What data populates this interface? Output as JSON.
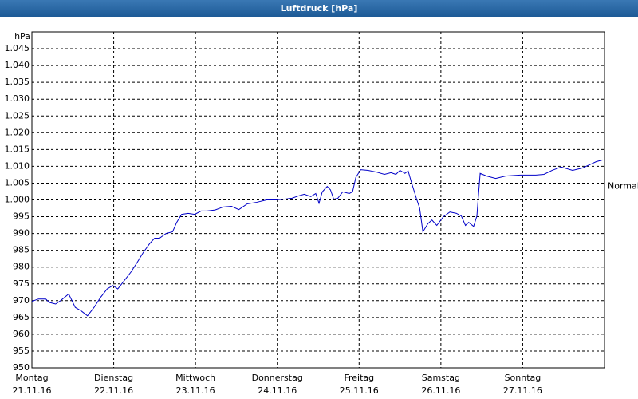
{
  "chart_data": {
    "type": "line",
    "title": "Luftdruck [hPa]",
    "y_unit": "hPa",
    "annotation": {
      "text": "Normal",
      "y": 1004
    },
    "xlim": [
      0,
      7
    ],
    "ylim": [
      950,
      1050
    ],
    "grid": true,
    "xticks": [
      {
        "value": 0,
        "label": "Montag",
        "date": "21.11.16"
      },
      {
        "value": 1,
        "label": "Dienstag",
        "date": "22.11.16"
      },
      {
        "value": 2,
        "label": "Mittwoch",
        "date": "23.11.16"
      },
      {
        "value": 3,
        "label": "Donnerstag",
        "date": "24.11.16"
      },
      {
        "value": 4,
        "label": "Freitag",
        "date": "25.11.16"
      },
      {
        "value": 5,
        "label": "Samstag",
        "date": "26.11.16"
      },
      {
        "value": 6,
        "label": "Sonntag",
        "date": "27.11.16"
      }
    ],
    "yticks": [
      950,
      955,
      960,
      965,
      970,
      975,
      980,
      985,
      990,
      995,
      {
        "value": 1000,
        "label": "1.000"
      },
      {
        "value": 1005,
        "label": "1.005"
      },
      {
        "value": 1010,
        "label": "1.010"
      },
      {
        "value": 1015,
        "label": "1.015"
      },
      {
        "value": 1020,
        "label": "1.020"
      },
      {
        "value": 1025,
        "label": "1.025"
      },
      {
        "value": 1030,
        "label": "1.030"
      },
      {
        "value": 1035,
        "label": "1.035"
      },
      {
        "value": 1040,
        "label": "1.040"
      },
      {
        "value": 1045,
        "label": "1.045"
      }
    ],
    "x": [
      0,
      0.08,
      0.17,
      0.21,
      0.29,
      0.35,
      0.45,
      0.53,
      0.6,
      0.68,
      0.76,
      0.84,
      0.92,
      0.99,
      1.05,
      1.13,
      1.21,
      1.29,
      1.36,
      1.44,
      1.5,
      1.56,
      1.64,
      1.72,
      1.77,
      1.83,
      1.91,
      1.99,
      2.07,
      2.14,
      2.24,
      2.34,
      2.44,
      2.53,
      2.63,
      2.75,
      2.87,
      2.98,
      3.08,
      3.18,
      3.26,
      3.33,
      3.41,
      3.47,
      3.51,
      3.55,
      3.61,
      3.65,
      3.69,
      3.74,
      3.8,
      3.88,
      3.92,
      3.96,
      4.02,
      4.11,
      4.21,
      4.31,
      4.39,
      4.45,
      4.5,
      4.56,
      4.6,
      4.64,
      4.7,
      4.74,
      4.78,
      4.84,
      4.89,
      4.95,
      5.03,
      5.11,
      5.19,
      5.25,
      5.3,
      5.34,
      5.4,
      5.44,
      5.48,
      5.56,
      5.67,
      5.79,
      5.97,
      6.16,
      6.26,
      6.36,
      6.47,
      6.61,
      6.73,
      6.82,
      6.9,
      6.98
    ],
    "series": [
      {
        "name": "Luftdruck",
        "color": "#0000c8",
        "values": [
          969.8,
          970.5,
          970.5,
          969.5,
          969,
          970,
          972,
          968,
          967,
          965.5,
          968,
          971,
          973.5,
          974.5,
          973.5,
          976,
          978.5,
          981.5,
          984.3,
          987,
          988.6,
          988.6,
          990,
          990.5,
          993.3,
          995.7,
          996,
          995.7,
          996.7,
          996.7,
          997,
          997.9,
          998.1,
          997.1,
          998.8,
          999.3,
          1000,
          1000,
          1000.2,
          1000.5,
          1001.2,
          1001.7,
          1001,
          1001.9,
          999,
          1002.4,
          1004,
          1003,
          1000.2,
          1000.5,
          1002.4,
          1001.9,
          1002.4,
          1006.7,
          1009,
          1008.8,
          1008.3,
          1007.6,
          1008.1,
          1007.6,
          1008.8,
          1007.9,
          1008.6,
          1005.2,
          1000.5,
          997.6,
          990.5,
          992.9,
          994,
          992.4,
          995,
          996.4,
          996,
          995.2,
          992.4,
          993.3,
          992.1,
          995.2,
          1007.9,
          1007.1,
          1006.4,
          1007.1,
          1007.4,
          1007.4,
          1007.6,
          1008.8,
          1009.8,
          1008.8,
          1009.5,
          1010.5,
          1011.4,
          1011.9
        ]
      }
    ]
  }
}
